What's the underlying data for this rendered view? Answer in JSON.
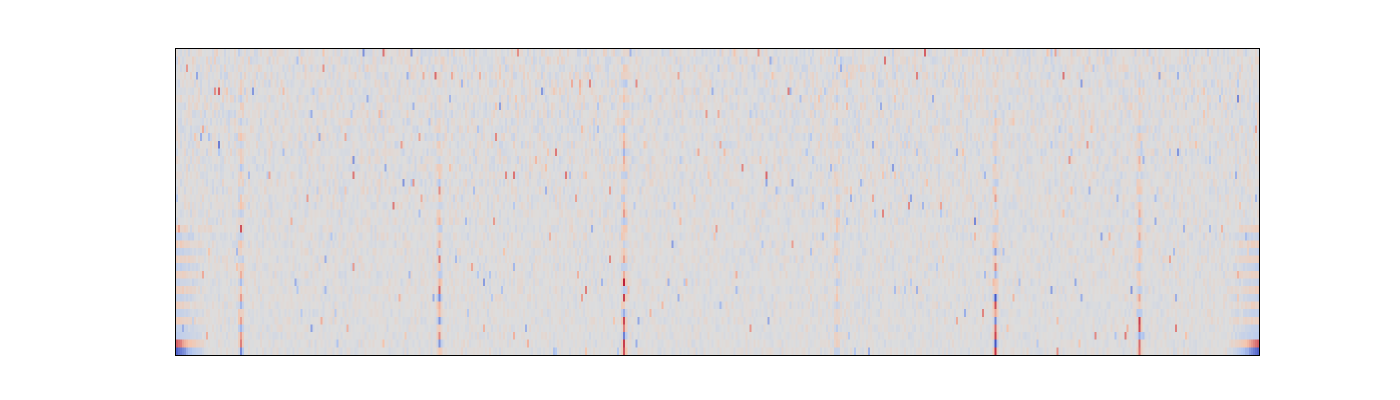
{
  "chart_data": {
    "type": "heatmap",
    "title": "",
    "xlabel": "",
    "ylabel": "",
    "axes_visible": false,
    "colormap": "coolwarm",
    "colormap_stops": [
      "#3b4cc0",
      "#b4c8f0",
      "#dddddd",
      "#f5c4ac",
      "#b40426"
    ],
    "n_rows": 40,
    "n_cols": 540,
    "value_range": [
      -1,
      1
    ],
    "background_value": 0,
    "noise_amplitude": 0.35,
    "noise_seed": 7,
    "band_columns": [
      0.06,
      0.242,
      0.413,
      0.61,
      0.755,
      0.888
    ],
    "band_strength": [
      0.8,
      0.85,
      1.0,
      0.55,
      0.9,
      0.85
    ],
    "edge_rows": {
      "bottom_row": {
        "left": -0.9,
        "right": -0.9
      },
      "second_row": {
        "left": 0.75,
        "right": 0.75
      },
      "third_row": {
        "left": -0.4,
        "right": -0.4
      }
    }
  }
}
